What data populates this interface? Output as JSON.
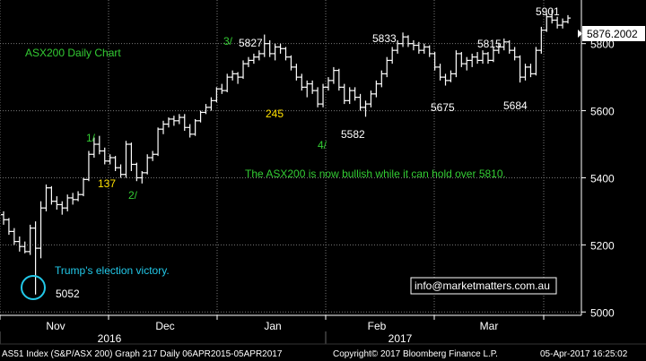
{
  "chart_data": {
    "type": "ohlc",
    "title": "ASX200 Daily Chart",
    "ylim": [
      4990,
      5930
    ],
    "y_ticks": [
      5000,
      5200,
      5400,
      5600,
      5800
    ],
    "x_tick_labels": [
      "Nov",
      "Dec",
      "Jan",
      "Feb",
      "Mar"
    ],
    "year_labels": [
      "2016",
      "2017"
    ],
    "last_price": "5876.2002",
    "grid": true,
    "colors": {
      "background": "#000000",
      "bars": "#ffffff",
      "grid": "#7a7a7a",
      "green": "#33cc33",
      "yellow": "#ffe000",
      "cyan": "#22c8e8",
      "price_box": "#ffffff"
    },
    "series": [
      {
        "values": [
          {
            "o": 5290,
            "h": 5300,
            "l": 5260,
            "c": 5275
          },
          {
            "o": 5275,
            "h": 5280,
            "l": 5230,
            "c": 5240
          },
          {
            "o": 5240,
            "h": 5250,
            "l": 5200,
            "c": 5210
          },
          {
            "o": 5210,
            "h": 5225,
            "l": 5180,
            "c": 5195
          },
          {
            "o": 5195,
            "h": 5210,
            "l": 5175,
            "c": 5180
          },
          {
            "o": 5180,
            "h": 5260,
            "l": 5170,
            "c": 5250
          },
          {
            "o": 5250,
            "h": 5270,
            "l": 5052,
            "c": 5190
          },
          {
            "o": 5190,
            "h": 5330,
            "l": 5160,
            "c": 5310
          },
          {
            "o": 5310,
            "h": 5380,
            "l": 5300,
            "c": 5370
          },
          {
            "o": 5370,
            "h": 5375,
            "l": 5320,
            "c": 5330
          },
          {
            "o": 5330,
            "h": 5345,
            "l": 5305,
            "c": 5320
          },
          {
            "o": 5320,
            "h": 5330,
            "l": 5290,
            "c": 5310
          },
          {
            "o": 5310,
            "h": 5350,
            "l": 5300,
            "c": 5340
          },
          {
            "o": 5340,
            "h": 5355,
            "l": 5320,
            "c": 5335
          },
          {
            "o": 5335,
            "h": 5360,
            "l": 5330,
            "c": 5350
          },
          {
            "o": 5350,
            "h": 5400,
            "l": 5345,
            "c": 5395
          },
          {
            "o": 5395,
            "h": 5480,
            "l": 5390,
            "c": 5470
          },
          {
            "o": 5470,
            "h": 5520,
            "l": 5460,
            "c": 5500
          },
          {
            "o": 5500,
            "h": 5525,
            "l": 5470,
            "c": 5480
          },
          {
            "o": 5480,
            "h": 5490,
            "l": 5440,
            "c": 5450
          },
          {
            "o": 5450,
            "h": 5470,
            "l": 5440,
            "c": 5460
          },
          {
            "o": 5460,
            "h": 5465,
            "l": 5420,
            "c": 5430
          },
          {
            "o": 5430,
            "h": 5440,
            "l": 5400,
            "c": 5410
          },
          {
            "o": 5410,
            "h": 5510,
            "l": 5400,
            "c": 5500
          },
          {
            "o": 5500,
            "h": 5505,
            "l": 5420,
            "c": 5440
          },
          {
            "o": 5440,
            "h": 5445,
            "l": 5390,
            "c": 5400
          },
          {
            "o": 5400,
            "h": 5420,
            "l": 5383,
            "c": 5415
          },
          {
            "o": 5415,
            "h": 5470,
            "l": 5410,
            "c": 5460
          },
          {
            "o": 5460,
            "h": 5480,
            "l": 5450,
            "c": 5470
          },
          {
            "o": 5470,
            "h": 5550,
            "l": 5465,
            "c": 5545
          },
          {
            "o": 5545,
            "h": 5570,
            "l": 5530,
            "c": 5560
          },
          {
            "o": 5560,
            "h": 5580,
            "l": 5550,
            "c": 5575
          },
          {
            "o": 5575,
            "h": 5585,
            "l": 5555,
            "c": 5570
          },
          {
            "o": 5570,
            "h": 5590,
            "l": 5560,
            "c": 5580
          },
          {
            "o": 5580,
            "h": 5590,
            "l": 5540,
            "c": 5550
          },
          {
            "o": 5550,
            "h": 5560,
            "l": 5520,
            "c": 5530
          },
          {
            "o": 5530,
            "h": 5575,
            "l": 5525,
            "c": 5570
          },
          {
            "o": 5570,
            "h": 5600,
            "l": 5565,
            "c": 5595
          },
          {
            "o": 5595,
            "h": 5620,
            "l": 5590,
            "c": 5610
          },
          {
            "o": 5610,
            "h": 5640,
            "l": 5600,
            "c": 5630
          },
          {
            "o": 5630,
            "h": 5670,
            "l": 5625,
            "c": 5665
          },
          {
            "o": 5665,
            "h": 5680,
            "l": 5650,
            "c": 5660
          },
          {
            "o": 5660,
            "h": 5710,
            "l": 5655,
            "c": 5700
          },
          {
            "o": 5700,
            "h": 5720,
            "l": 5690,
            "c": 5710
          },
          {
            "o": 5710,
            "h": 5715,
            "l": 5680,
            "c": 5700
          },
          {
            "o": 5700,
            "h": 5750,
            "l": 5695,
            "c": 5740
          },
          {
            "o": 5740,
            "h": 5760,
            "l": 5730,
            "c": 5750
          },
          {
            "o": 5750,
            "h": 5770,
            "l": 5740,
            "c": 5760
          },
          {
            "o": 5760,
            "h": 5780,
            "l": 5750,
            "c": 5770
          },
          {
            "o": 5770,
            "h": 5827,
            "l": 5760,
            "c": 5800
          },
          {
            "o": 5800,
            "h": 5810,
            "l": 5760,
            "c": 5770
          },
          {
            "o": 5770,
            "h": 5800,
            "l": 5750,
            "c": 5790
          },
          {
            "o": 5790,
            "h": 5800,
            "l": 5770,
            "c": 5785
          },
          {
            "o": 5785,
            "h": 5790,
            "l": 5750,
            "c": 5760
          },
          {
            "o": 5760,
            "h": 5765,
            "l": 5720,
            "c": 5730
          },
          {
            "o": 5730,
            "h": 5740,
            "l": 5690,
            "c": 5700
          },
          {
            "o": 5700,
            "h": 5710,
            "l": 5660,
            "c": 5670
          },
          {
            "o": 5670,
            "h": 5690,
            "l": 5640,
            "c": 5680
          },
          {
            "o": 5680,
            "h": 5690,
            "l": 5650,
            "c": 5660
          },
          {
            "o": 5660,
            "h": 5670,
            "l": 5610,
            "c": 5620
          },
          {
            "o": 5620,
            "h": 5680,
            "l": 5610,
            "c": 5670
          },
          {
            "o": 5670,
            "h": 5700,
            "l": 5660,
            "c": 5690
          },
          {
            "o": 5690,
            "h": 5730,
            "l": 5680,
            "c": 5720
          },
          {
            "o": 5720,
            "h": 5725,
            "l": 5660,
            "c": 5670
          },
          {
            "o": 5670,
            "h": 5680,
            "l": 5620,
            "c": 5630
          },
          {
            "o": 5630,
            "h": 5670,
            "l": 5620,
            "c": 5660
          },
          {
            "o": 5660,
            "h": 5670,
            "l": 5630,
            "c": 5640
          },
          {
            "o": 5640,
            "h": 5650,
            "l": 5600,
            "c": 5610
          },
          {
            "o": 5610,
            "h": 5630,
            "l": 5582,
            "c": 5620
          },
          {
            "o": 5620,
            "h": 5660,
            "l": 5610,
            "c": 5650
          },
          {
            "o": 5650,
            "h": 5690,
            "l": 5640,
            "c": 5680
          },
          {
            "o": 5680,
            "h": 5720,
            "l": 5670,
            "c": 5710
          },
          {
            "o": 5710,
            "h": 5760,
            "l": 5700,
            "c": 5750
          },
          {
            "o": 5750,
            "h": 5790,
            "l": 5740,
            "c": 5780
          },
          {
            "o": 5780,
            "h": 5810,
            "l": 5770,
            "c": 5800
          },
          {
            "o": 5800,
            "h": 5833,
            "l": 5790,
            "c": 5820
          },
          {
            "o": 5820,
            "h": 5825,
            "l": 5790,
            "c": 5800
          },
          {
            "o": 5800,
            "h": 5810,
            "l": 5780,
            "c": 5795
          },
          {
            "o": 5795,
            "h": 5805,
            "l": 5770,
            "c": 5780
          },
          {
            "o": 5780,
            "h": 5800,
            "l": 5770,
            "c": 5790
          },
          {
            "o": 5790,
            "h": 5795,
            "l": 5760,
            "c": 5770
          },
          {
            "o": 5770,
            "h": 5775,
            "l": 5720,
            "c": 5730
          },
          {
            "o": 5730,
            "h": 5740,
            "l": 5690,
            "c": 5700
          },
          {
            "o": 5700,
            "h": 5710,
            "l": 5675,
            "c": 5690
          },
          {
            "o": 5690,
            "h": 5720,
            "l": 5685,
            "c": 5710
          },
          {
            "o": 5710,
            "h": 5780,
            "l": 5700,
            "c": 5770
          },
          {
            "o": 5770,
            "h": 5775,
            "l": 5730,
            "c": 5740
          },
          {
            "o": 5740,
            "h": 5760,
            "l": 5720,
            "c": 5750
          },
          {
            "o": 5750,
            "h": 5770,
            "l": 5730,
            "c": 5760
          },
          {
            "o": 5760,
            "h": 5775,
            "l": 5740,
            "c": 5750
          },
          {
            "o": 5750,
            "h": 5780,
            "l": 5740,
            "c": 5770
          },
          {
            "o": 5770,
            "h": 5775,
            "l": 5740,
            "c": 5750
          },
          {
            "o": 5750,
            "h": 5790,
            "l": 5745,
            "c": 5780
          },
          {
            "o": 5780,
            "h": 5800,
            "l": 5770,
            "c": 5790
          },
          {
            "o": 5790,
            "h": 5815,
            "l": 5780,
            "c": 5805
          },
          {
            "o": 5805,
            "h": 5810,
            "l": 5770,
            "c": 5780
          },
          {
            "o": 5780,
            "h": 5790,
            "l": 5750,
            "c": 5760
          },
          {
            "o": 5760,
            "h": 5765,
            "l": 5684,
            "c": 5700
          },
          {
            "o": 5700,
            "h": 5740,
            "l": 5690,
            "c": 5730
          },
          {
            "o": 5730,
            "h": 5740,
            "l": 5700,
            "c": 5710
          },
          {
            "o": 5710,
            "h": 5790,
            "l": 5705,
            "c": 5780
          },
          {
            "o": 5780,
            "h": 5850,
            "l": 5770,
            "c": 5840
          },
          {
            "o": 5840,
            "h": 5890,
            "l": 5835,
            "c": 5880
          },
          {
            "o": 5880,
            "h": 5901,
            "l": 5860,
            "c": 5870
          },
          {
            "o": 5870,
            "h": 5880,
            "l": 5845,
            "c": 5855
          },
          {
            "o": 5855,
            "h": 5875,
            "l": 5845,
            "c": 5865
          },
          {
            "o": 5865,
            "h": 5885,
            "l": 5860,
            "c": 5876.2
          }
        ]
      }
    ],
    "annotations": [
      {
        "text": "ASX200 Daily Chart",
        "color": "green"
      },
      {
        "text": "1/",
        "color": "green"
      },
      {
        "text": "137",
        "color": "yellow"
      },
      {
        "text": "2/",
        "color": "green"
      },
      {
        "text": "3/",
        "color": "green"
      },
      {
        "text": "5827",
        "color": "white"
      },
      {
        "text": "245",
        "color": "yellow"
      },
      {
        "text": "4/",
        "color": "green"
      },
      {
        "text": "5582",
        "color": "white"
      },
      {
        "text": "5833",
        "color": "white"
      },
      {
        "text": "5675",
        "color": "white"
      },
      {
        "text": "5815",
        "color": "white"
      },
      {
        "text": "5684",
        "color": "white"
      },
      {
        "text": "5901",
        "color": "white"
      },
      {
        "text": "The ASX200 is now bullish while it can hold over 5810.",
        "color": "green"
      },
      {
        "text": "Trump's election victory.",
        "color": "cyan"
      },
      {
        "text": "5052",
        "color": "white"
      }
    ]
  },
  "watermark": "info@marketmatters.com.au",
  "footer": {
    "index": "AS51 Index (S&P/ASX 200) Graph 217  Daily 06APR2015-05APR2017",
    "copyright": "Copyright© 2017 Bloomberg Finance L.P.",
    "timestamp": "05-Apr-2017 16:25:02"
  }
}
